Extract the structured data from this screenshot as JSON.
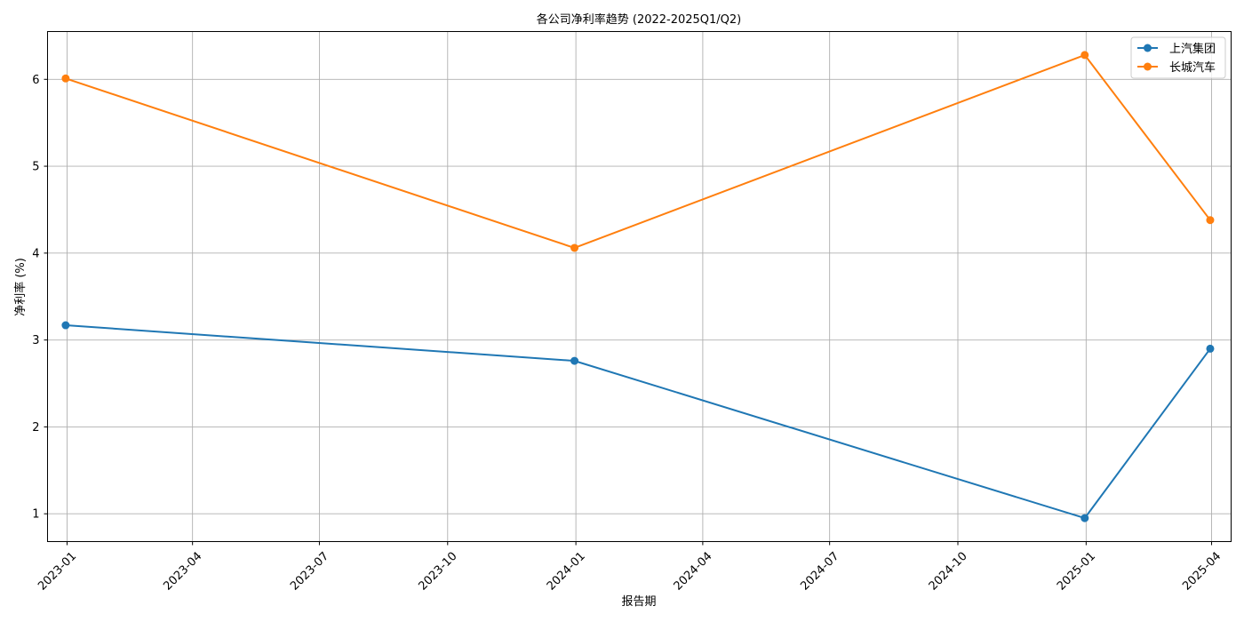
{
  "chart_data": {
    "type": "line",
    "title": "各公司净利率趋势 (2022-2025Q1/Q2)",
    "xlabel": "报告期",
    "ylabel": "净利率 (%)",
    "x_ticks": [
      "2023-01",
      "2023-04",
      "2023-07",
      "2023-10",
      "2024-01",
      "2024-04",
      "2024-07",
      "2024-10",
      "2025-01",
      "2025-04"
    ],
    "y_ticks": [
      "1",
      "2",
      "3",
      "4",
      "5",
      "6"
    ],
    "x_range": [
      "2022-12-18",
      "2025-04-15"
    ],
    "ylim": [
      0.68,
      6.55
    ],
    "grid": true,
    "legend_position": "top-right",
    "x": [
      "2022-12-31",
      "2023-12-31",
      "2024-12-31",
      "2025-03-31"
    ],
    "series": [
      {
        "name": "上汽集团",
        "color": "#1f77b4",
        "values": [
          3.17,
          2.76,
          0.95,
          2.9
        ]
      },
      {
        "name": "长城汽车",
        "color": "#ff7f0e",
        "values": [
          6.01,
          4.06,
          6.28,
          4.38
        ]
      }
    ]
  }
}
